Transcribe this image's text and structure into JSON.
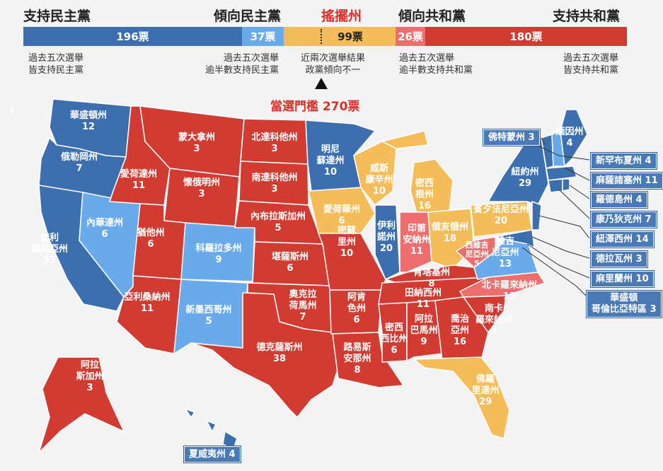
{
  "header": {
    "solid_dem": "支持民主黨",
    "lean_dem": "傾向民主黨",
    "swing": "搖擺州",
    "lean_rep": "傾向共和黨",
    "solid_rep": "支持共和黨"
  },
  "bar": {
    "solid_dem": {
      "label": "196票",
      "votes": 196,
      "color": "#3d6fb0"
    },
    "lean_dem": {
      "label": "37票",
      "votes": 37,
      "color": "#6aaaea"
    },
    "swing": {
      "label": "99票",
      "votes": 99,
      "color": "#f5bd5a"
    },
    "lean_rep": {
      "label": "26票",
      "votes": 26,
      "color": "#ee6e6e"
    },
    "solid_rep": {
      "label": "180票",
      "votes": 180,
      "color": "#d13b32"
    }
  },
  "notes": {
    "solid_dem": [
      "過去五次選舉",
      "皆支持民主黨"
    ],
    "lean_dem": [
      "過去五次選舉",
      "逾半數支持民主黨"
    ],
    "swing": [
      "近兩次選舉結果",
      "政黨傾向不一"
    ],
    "lean_rep": [
      "過去五次選舉",
      "逾半數支持共和黨"
    ],
    "solid_rep": [
      "過去五次選舉",
      "皆支持共和黨"
    ]
  },
  "threshold": "當選門檻 270票",
  "states": {
    "wa": {
      "name": [
        "華盛頓州"
      ],
      "votes": "12"
    },
    "or": {
      "name": [
        "俄勒岡州"
      ],
      "votes": "7"
    },
    "ca": {
      "name": [
        "加利",
        "福尼亞州"
      ],
      "votes": "55"
    },
    "nv": {
      "name": [
        "內華達州"
      ],
      "votes": "6"
    },
    "id": {
      "name": [
        "愛荷達州"
      ],
      "votes": "11"
    },
    "mt": {
      "name": [
        "蒙大拿州"
      ],
      "votes": "3"
    },
    "wy": {
      "name": [
        "懷俄明州"
      ],
      "votes": "3"
    },
    "ut": {
      "name": [
        "猶他州"
      ],
      "votes": "6"
    },
    "co": {
      "name": [
        "科羅拉多州"
      ],
      "votes": "9"
    },
    "az": {
      "name": [
        "亞利桑納州"
      ],
      "votes": "11"
    },
    "nm": {
      "name": [
        "新墨西哥州"
      ],
      "votes": "5"
    },
    "nd": {
      "name": [
        "北達科他州"
      ],
      "votes": "3"
    },
    "sd": {
      "name": [
        "南達科他州"
      ],
      "votes": "3"
    },
    "ne": {
      "name": [
        "內布拉斯加州"
      ],
      "votes": "5"
    },
    "ks": {
      "name": [
        "堪薩斯州"
      ],
      "votes": "6"
    },
    "ok": {
      "name": [
        "奧克拉",
        "荷馬州"
      ],
      "votes": "7"
    },
    "tx": {
      "name": [
        "德克薩斯州"
      ],
      "votes": "38"
    },
    "mn": {
      "name": [
        "明尼",
        "蘇達州"
      ],
      "votes": "10"
    },
    "ia": {
      "name": [
        "愛荷華州"
      ],
      "votes": "6"
    },
    "mo": {
      "name": [
        "密蘇",
        "里州"
      ],
      "votes": "10"
    },
    "ar": {
      "name": [
        "阿肯",
        "色州"
      ],
      "votes": "6"
    },
    "la": {
      "name": [
        "路易斯",
        "安那州"
      ],
      "votes": "8"
    },
    "wi": {
      "name": [
        "威斯",
        "康辛州"
      ],
      "votes": "10"
    },
    "il": {
      "name": [
        "伊利",
        "諾州"
      ],
      "votes": "20"
    },
    "mi": {
      "name": [
        "密西",
        "根州"
      ],
      "votes": "16"
    },
    "in": {
      "name": [
        "印第",
        "安納州"
      ],
      "votes": "11"
    },
    "oh": {
      "name": [
        "俄亥俄州"
      ],
      "votes": "18"
    },
    "ky": {
      "name": [
        "肯塔基州"
      ],
      "votes": "8"
    },
    "tn": {
      "name": [
        "田納西州"
      ],
      "votes": "11"
    },
    "ms": {
      "name": [
        "密西",
        "西比州"
      ],
      "votes": "6"
    },
    "al": {
      "name": [
        "阿拉",
        "巴馬州"
      ],
      "votes": "9"
    },
    "ga": {
      "name": [
        "喬治",
        "亞州"
      ],
      "votes": "16"
    },
    "fl": {
      "name": [
        "佛羅",
        "里達州"
      ],
      "votes": "29"
    },
    "sc": {
      "name": [
        "南卡",
        "羅來納州"
      ],
      "votes": "9"
    },
    "nc": {
      "name": [
        "北卡羅來納州"
      ],
      "votes": "15"
    },
    "va": {
      "name": [
        "維吉",
        "尼亞州"
      ],
      "votes": "13"
    },
    "wv": {
      "name": [
        "西維吉",
        "尼亞州"
      ],
      "votes": "5"
    },
    "pa": {
      "name": [
        "賓夕法尼亞州"
      ],
      "votes": "20"
    },
    "ny": {
      "name": [
        "紐約州"
      ],
      "votes": "29"
    },
    "me": {
      "name": [
        "緬因州"
      ],
      "votes": "4"
    },
    "ak": {
      "name": [
        "阿拉",
        "斯加州"
      ],
      "votes": "3"
    }
  },
  "boxes": {
    "vt": "佛特蒙州 3",
    "nh": "新罕布夏州 4",
    "ma": "麻薩諸塞州 11",
    "ri": "羅德島州 4",
    "ct": "康乃狄克州 7",
    "nj": "紐澤西州 14",
    "de": "德拉瓦州 3",
    "md": "麻里蘭州 10",
    "dc": [
      "華盛頓",
      "哥倫比亞特區 3"
    ],
    "hi": "夏威夷州 4"
  },
  "colors": {
    "solid_dem": "#3d6fb0",
    "lean_dem": "#6aaaea",
    "swing": "#f5bd5a",
    "lean_rep": "#ee6e6e",
    "solid_rep": "#d13b32"
  }
}
